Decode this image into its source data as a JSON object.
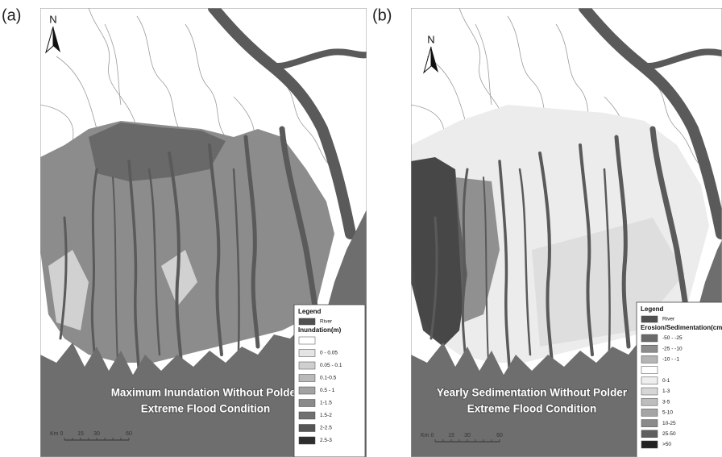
{
  "panels": [
    {
      "label": "(a)",
      "north": "N",
      "title_lines": [
        "Maximum Inundation Without Polder",
        "Extreme Flood Condition"
      ],
      "legend": {
        "title": "Legend",
        "river": "River",
        "river_color": "#505050",
        "heading": "Inundation(m)",
        "items": [
          {
            "color": "#ffffff"
          },
          {
            "label": "0 - 0.05",
            "color": "#e4e4e4"
          },
          {
            "label": "0.05 - 0.1",
            "color": "#cfcfcf"
          },
          {
            "label": "0.1-0.5",
            "color": "#b9b9b9"
          },
          {
            "label": "0.5 - 1",
            "color": "#a2a2a2"
          },
          {
            "label": "1-1.5",
            "color": "#8a8a8a"
          },
          {
            "label": "1.5-2",
            "color": "#707070"
          },
          {
            "label": "2-2.5",
            "color": "#555555"
          },
          {
            "label": "2.5-3",
            "color": "#2e2e2e"
          }
        ]
      },
      "scale": [
        "Km 0",
        "15",
        "30",
        "60"
      ]
    },
    {
      "label": "(b)",
      "north": "N",
      "title_lines": [
        "Yearly Sedimentation Without Polder",
        "Extreme Flood Condition"
      ],
      "legend": {
        "title": "Legend",
        "river": "River",
        "river_color": "#505050",
        "heading": "Erosion/Sedimentation(cm)",
        "items": [
          {
            "label": "-50 - -25",
            "color": "#6a6a6a"
          },
          {
            "label": "-25 - -10",
            "color": "#8c8c8c"
          },
          {
            "label": "-10 - -1",
            "color": "#b4b4b4"
          },
          {
            "color": "#ffffff"
          },
          {
            "label": "0-1",
            "color": "#eeeeee"
          },
          {
            "label": "1-3",
            "color": "#d6d6d6"
          },
          {
            "label": "3-5",
            "color": "#bdbdbd"
          },
          {
            "label": "5-10",
            "color": "#a5a5a5"
          },
          {
            "label": "10-25",
            "color": "#8a8a8a"
          },
          {
            "label": "25-50",
            "color": "#5e5e5e"
          },
          {
            "label": ">50",
            "color": "#222222"
          }
        ]
      },
      "scale": [
        "Km 0",
        "15",
        "30",
        "60"
      ]
    }
  ]
}
